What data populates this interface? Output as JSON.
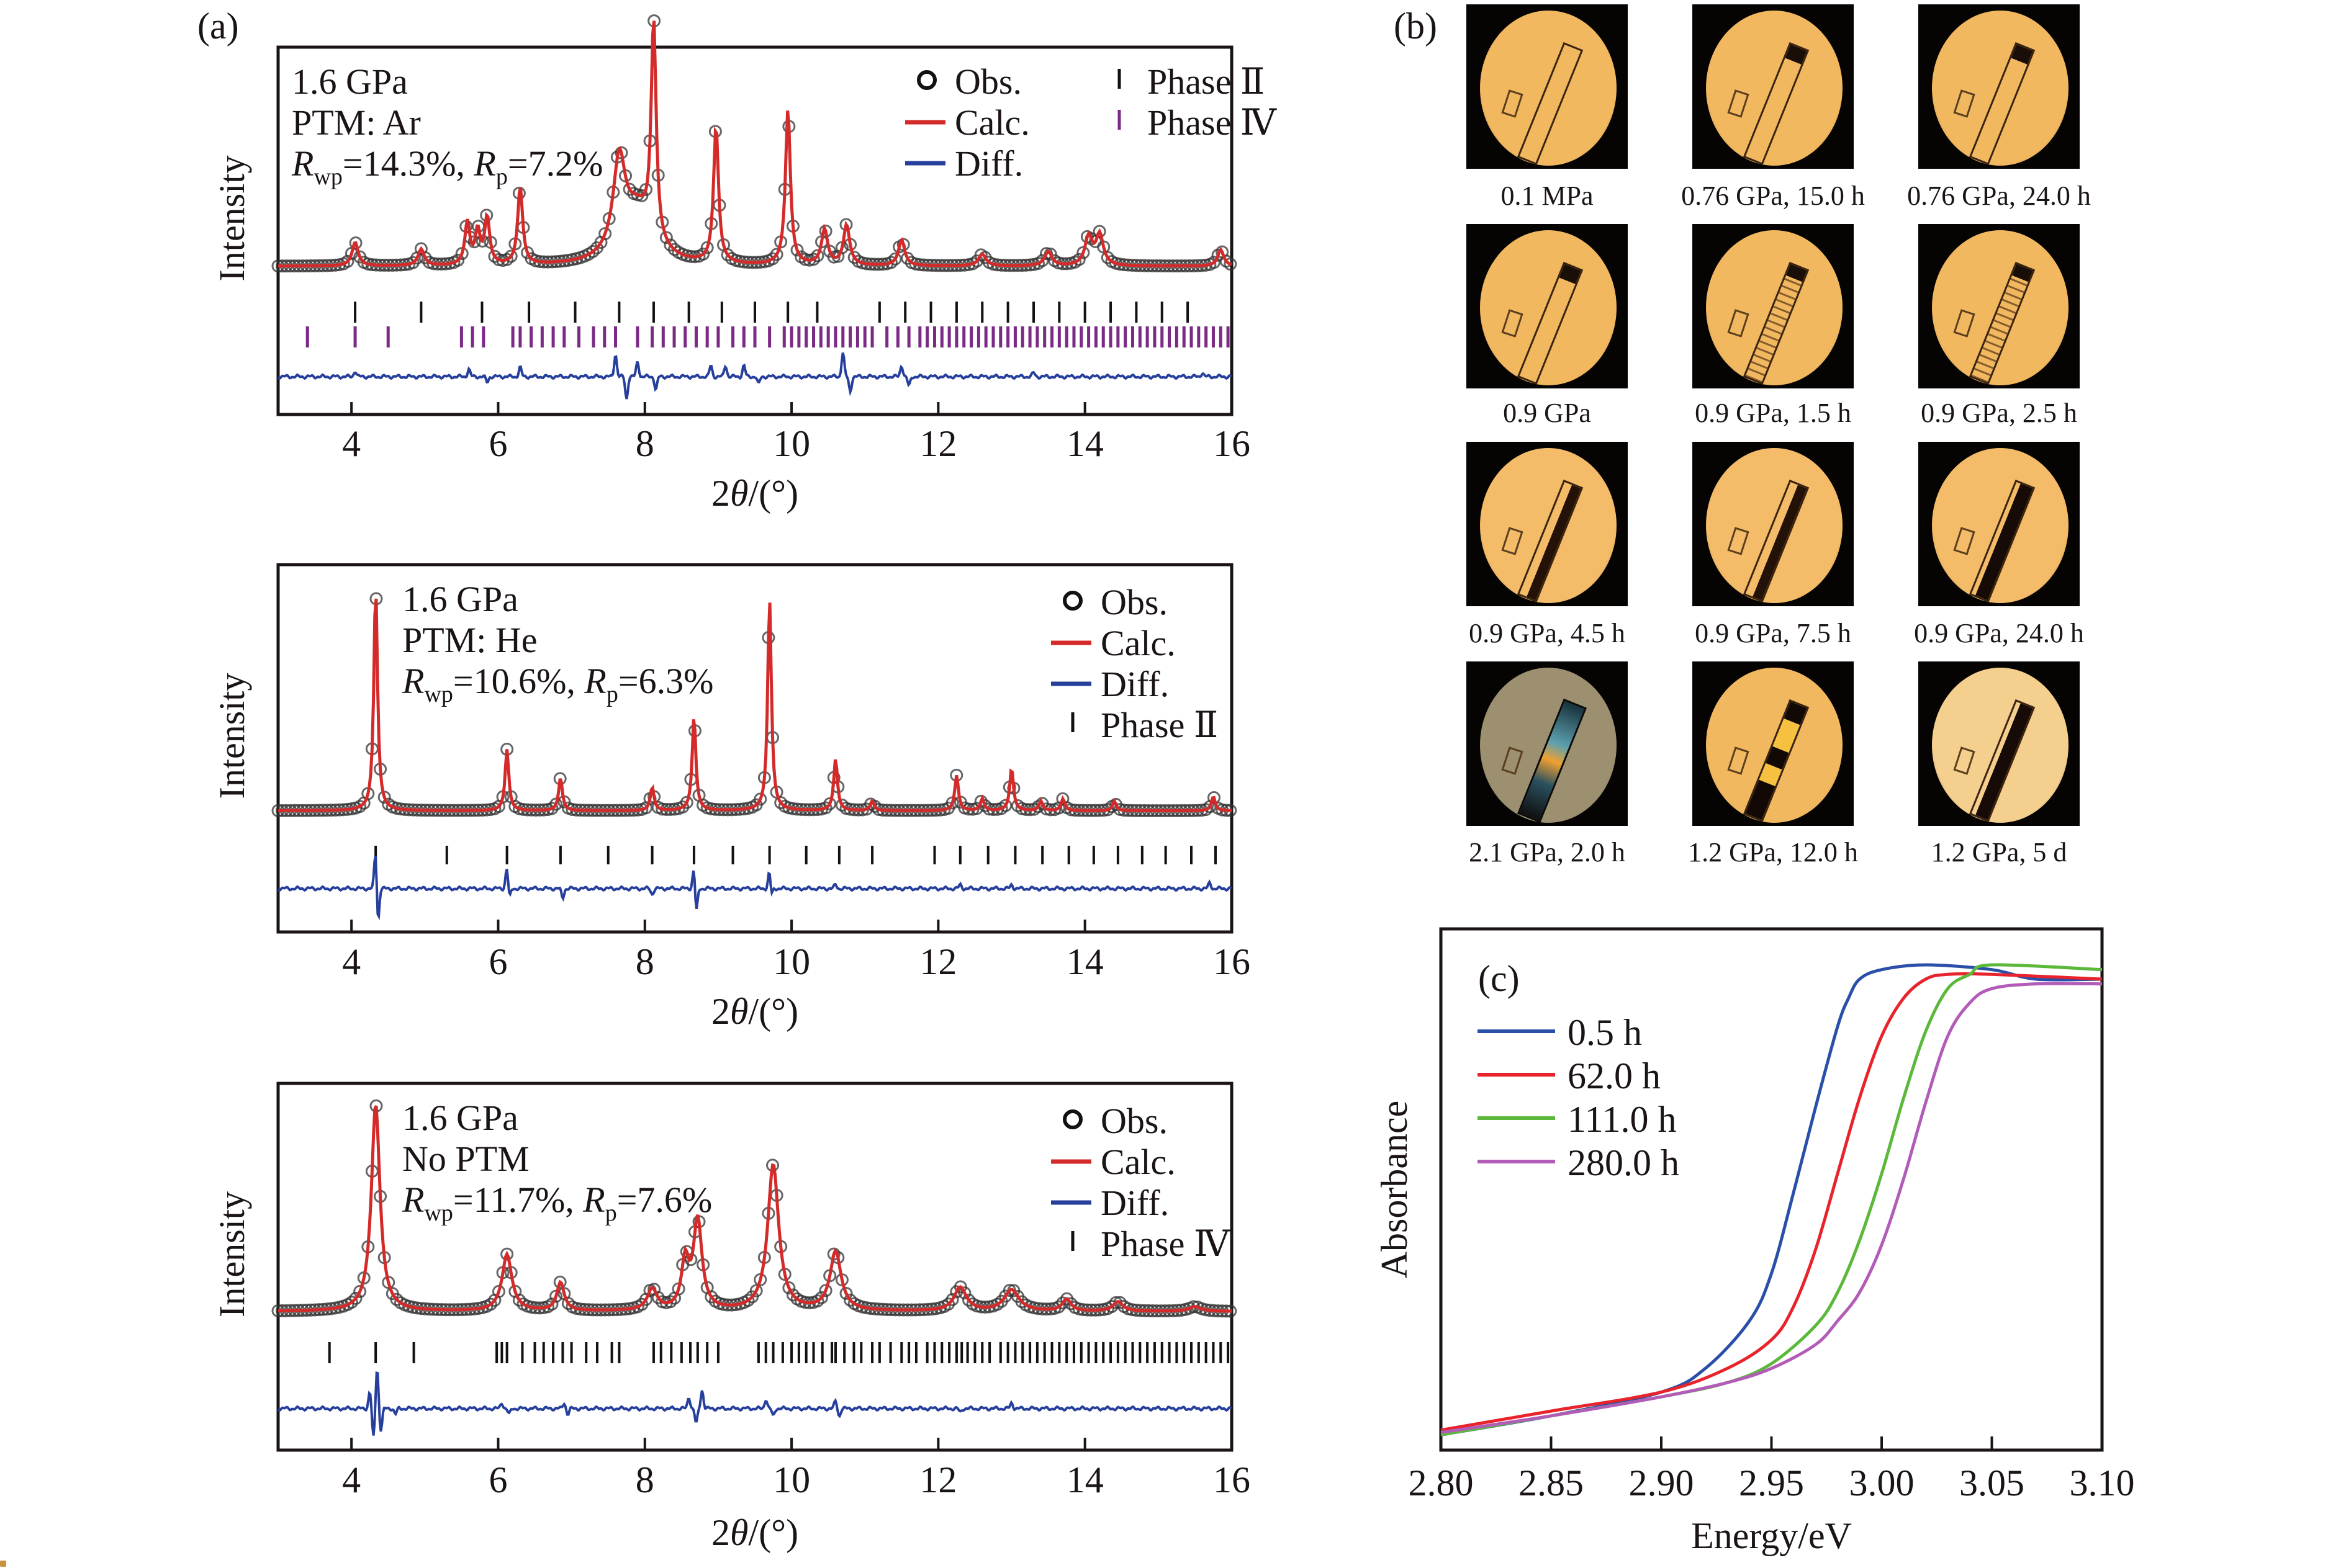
{
  "figure": {
    "panel_labels": {
      "a": "(a)",
      "b": "(b)",
      "c": "(c)"
    }
  },
  "colors": {
    "obs": "#333333",
    "calc": "#d42a2a",
    "diff": "#263f9c",
    "phase2": "#111111",
    "phase4": "#7b2a86",
    "c_0_5h": "#2a4fa8",
    "c_62h": "#e8232b",
    "c_111h": "#5cb83a",
    "c_280h": "#b25cb8"
  },
  "chart_data": [
    {
      "id": "a1",
      "type": "line",
      "title": "",
      "annotations": [
        "1.6 GPa",
        "PTM: Ar"
      ],
      "rwp": {
        "R": "R",
        "sub1": "wp",
        "v1": "=14.3%, ",
        "sub2": "p",
        "v2": "=7.2%"
      },
      "xlabel": "2θ/(°)",
      "ylabel": "Intensity",
      "xlim": [
        3,
        16
      ],
      "xticks": [
        4,
        6,
        8,
        10,
        12,
        14,
        16
      ],
      "legend": {
        "placement": "top-right",
        "entries": [
          {
            "key": "obs",
            "label": "Obs."
          },
          {
            "key": "calc",
            "label": "Calc."
          },
          {
            "key": "diff",
            "label": "Diff."
          },
          {
            "key": "phase2",
            "label": "Phase Ⅱ"
          },
          {
            "key": "phase4",
            "label": "Phase Ⅳ"
          }
        ]
      },
      "background": 0.06,
      "peaks": [
        {
          "x": 4.05,
          "h": 0.1,
          "w": 0.05
        },
        {
          "x": 4.95,
          "h": 0.07,
          "w": 0.05
        },
        {
          "x": 5.58,
          "h": 0.18,
          "w": 0.04
        },
        {
          "x": 5.72,
          "h": 0.14,
          "w": 0.04
        },
        {
          "x": 5.85,
          "h": 0.2,
          "w": 0.04
        },
        {
          "x": 6.3,
          "h": 0.33,
          "w": 0.04
        },
        {
          "x": 7.65,
          "h": 0.38,
          "w": 0.1
        },
        {
          "x": 7.9,
          "h": 0.22,
          "w": 0.25
        },
        {
          "x": 8.12,
          "h": 0.92,
          "w": 0.04
        },
        {
          "x": 8.97,
          "h": 0.58,
          "w": 0.04
        },
        {
          "x": 9.95,
          "h": 0.66,
          "w": 0.04
        },
        {
          "x": 10.45,
          "h": 0.15,
          "w": 0.05
        },
        {
          "x": 10.75,
          "h": 0.17,
          "w": 0.05
        },
        {
          "x": 11.5,
          "h": 0.11,
          "w": 0.05
        },
        {
          "x": 12.6,
          "h": 0.05,
          "w": 0.06
        },
        {
          "x": 13.5,
          "h": 0.06,
          "w": 0.06
        },
        {
          "x": 14.05,
          "h": 0.12,
          "w": 0.06
        },
        {
          "x": 14.2,
          "h": 0.13,
          "w": 0.06
        },
        {
          "x": 15.85,
          "h": 0.07,
          "w": 0.05
        }
      ],
      "phase2_ticks": [
        4.05,
        4.95,
        5.78,
        6.42,
        7.05,
        7.65,
        8.12,
        8.6,
        9.05,
        9.5,
        9.95,
        10.35,
        11.2,
        11.55,
        11.9,
        12.25,
        12.6,
        12.95,
        13.3,
        13.65,
        14.0,
        14.35,
        14.7,
        15.05,
        15.4
      ],
      "phase4_ticks": [
        3.4,
        4.05,
        4.5,
        5.5,
        5.65,
        5.8,
        6.2,
        6.3,
        6.45,
        6.6,
        6.75,
        6.9,
        7.1,
        7.3,
        7.45,
        7.6,
        7.9,
        8.1,
        8.25,
        8.4,
        8.55,
        8.7,
        8.85,
        9.0,
        9.2,
        9.35,
        9.5,
        9.7,
        9.9,
        10.0,
        10.1,
        10.2,
        10.3,
        10.4,
        10.5,
        10.6,
        10.7,
        10.8,
        10.9,
        11.0,
        11.1,
        11.3,
        11.45,
        11.6,
        11.75,
        11.85,
        11.95,
        12.05,
        12.15,
        12.25,
        12.35,
        12.45,
        12.55,
        12.65,
        12.75,
        12.85,
        12.95,
        13.05,
        13.15,
        13.25,
        13.35,
        13.45,
        13.55,
        13.65,
        13.75,
        13.85,
        13.95,
        14.05,
        14.15,
        14.25,
        14.35,
        14.45,
        14.55,
        14.65,
        14.75,
        14.85,
        14.95,
        15.05,
        15.15,
        15.25,
        15.35,
        15.45,
        15.55,
        15.65,
        15.75,
        15.85,
        15.95
      ],
      "diff_features": [
        {
          "x": 4.05,
          "a": 0.03
        },
        {
          "x": 5.6,
          "a": 0.04
        },
        {
          "x": 5.85,
          "a": -0.03
        },
        {
          "x": 6.3,
          "a": 0.05
        },
        {
          "x": 7.6,
          "a": 0.12
        },
        {
          "x": 7.75,
          "a": -0.12
        },
        {
          "x": 7.9,
          "a": 0.08
        },
        {
          "x": 8.15,
          "a": -0.07
        },
        {
          "x": 8.9,
          "a": 0.06
        },
        {
          "x": 9.1,
          "a": 0.06
        },
        {
          "x": 9.35,
          "a": 0.06
        },
        {
          "x": 9.55,
          "a": -0.04
        },
        {
          "x": 10.7,
          "a": 0.13
        },
        {
          "x": 10.8,
          "a": -0.08
        },
        {
          "x": 11.5,
          "a": 0.06
        },
        {
          "x": 11.6,
          "a": -0.05
        },
        {
          "x": 13.3,
          "a": 0.02
        },
        {
          "x": 15.6,
          "a": 0.02
        }
      ]
    },
    {
      "id": "a2",
      "type": "line",
      "title": "",
      "annotations": [
        "1.6 GPa",
        "PTM: He"
      ],
      "rwp": {
        "R": "R",
        "sub1": "wp",
        "v1": "=10.6%, ",
        "sub2": "p",
        "v2": "=6.3%"
      },
      "xlabel": "2θ/(°)",
      "ylabel": "Intensity",
      "xlim": [
        3,
        16
      ],
      "xticks": [
        4,
        6,
        8,
        10,
        12,
        14,
        16
      ],
      "legend": {
        "placement": "top-right",
        "entries": [
          {
            "key": "obs",
            "label": "Obs."
          },
          {
            "key": "calc",
            "label": "Calc."
          },
          {
            "key": "diff",
            "label": "Diff."
          },
          {
            "key": "phase2",
            "label": "Phase Ⅱ"
          }
        ]
      },
      "background": 0.03,
      "peaks": [
        {
          "x": 4.33,
          "h": 0.95,
          "w": 0.03
        },
        {
          "x": 6.12,
          "h": 0.26,
          "w": 0.03
        },
        {
          "x": 6.85,
          "h": 0.14,
          "w": 0.03
        },
        {
          "x": 8.1,
          "h": 0.1,
          "w": 0.03
        },
        {
          "x": 8.67,
          "h": 0.4,
          "w": 0.03
        },
        {
          "x": 9.7,
          "h": 0.9,
          "w": 0.03
        },
        {
          "x": 10.6,
          "h": 0.22,
          "w": 0.03
        },
        {
          "x": 11.1,
          "h": 0.04,
          "w": 0.03
        },
        {
          "x": 12.25,
          "h": 0.15,
          "w": 0.03
        },
        {
          "x": 12.6,
          "h": 0.05,
          "w": 0.03
        },
        {
          "x": 13.0,
          "h": 0.18,
          "w": 0.03
        },
        {
          "x": 13.4,
          "h": 0.04,
          "w": 0.03
        },
        {
          "x": 13.7,
          "h": 0.05,
          "w": 0.03
        },
        {
          "x": 14.4,
          "h": 0.04,
          "w": 0.03
        },
        {
          "x": 15.75,
          "h": 0.06,
          "w": 0.03
        }
      ],
      "phase2_ticks": [
        4.33,
        5.3,
        6.12,
        6.85,
        7.5,
        8.1,
        8.67,
        9.2,
        9.7,
        10.2,
        10.65,
        11.1,
        11.95,
        12.3,
        12.68,
        13.05,
        13.42,
        13.78,
        14.12,
        14.45,
        14.78,
        15.1,
        15.45,
        15.78
      ],
      "diff_features": [
        {
          "x": 4.33,
          "a": 0.22
        },
        {
          "x": 4.36,
          "a": -0.2
        },
        {
          "x": 6.12,
          "a": 0.12
        },
        {
          "x": 6.15,
          "a": -0.06
        },
        {
          "x": 6.88,
          "a": -0.05
        },
        {
          "x": 8.1,
          "a": -0.03
        },
        {
          "x": 8.67,
          "a": 0.12
        },
        {
          "x": 8.7,
          "a": -0.14
        },
        {
          "x": 9.7,
          "a": 0.11
        },
        {
          "x": 9.72,
          "a": -0.06
        },
        {
          "x": 10.6,
          "a": 0.02
        },
        {
          "x": 12.3,
          "a": 0.02
        },
        {
          "x": 13.0,
          "a": 0.02
        },
        {
          "x": 15.7,
          "a": 0.03
        }
      ]
    },
    {
      "id": "a3",
      "type": "line",
      "title": "",
      "annotations": [
        "1.6 GPa",
        "No PTM"
      ],
      "rwp": {
        "R": "R",
        "sub1": "wp",
        "v1": "=11.7%, ",
        "sub2": "p",
        "v2": "=7.6%"
      },
      "xlabel": "2θ/(°)",
      "ylabel": "Intensity",
      "xlim": [
        3,
        16
      ],
      "xticks": [
        4,
        6,
        8,
        10,
        12,
        14,
        16
      ],
      "legend": {
        "placement": "top-right",
        "entries": [
          {
            "key": "obs",
            "label": "Obs."
          },
          {
            "key": "calc",
            "label": "Calc."
          },
          {
            "key": "diff",
            "label": "Diff."
          },
          {
            "key": "phase2",
            "label": "Phase Ⅳ"
          }
        ]
      },
      "background": 0.03,
      "peaks": [
        {
          "x": 4.33,
          "h": 0.88,
          "w": 0.07
        },
        {
          "x": 6.12,
          "h": 0.24,
          "w": 0.08
        },
        {
          "x": 6.85,
          "h": 0.12,
          "w": 0.06
        },
        {
          "x": 8.1,
          "h": 0.09,
          "w": 0.08
        },
        {
          "x": 8.55,
          "h": 0.2,
          "w": 0.06
        },
        {
          "x": 8.72,
          "h": 0.38,
          "w": 0.07
        },
        {
          "x": 9.75,
          "h": 0.62,
          "w": 0.09
        },
        {
          "x": 10.6,
          "h": 0.25,
          "w": 0.09
        },
        {
          "x": 12.3,
          "h": 0.1,
          "w": 0.1
        },
        {
          "x": 13.0,
          "h": 0.09,
          "w": 0.12
        },
        {
          "x": 13.75,
          "h": 0.05,
          "w": 0.07
        },
        {
          "x": 14.45,
          "h": 0.04,
          "w": 0.08
        },
        {
          "x": 15.5,
          "h": 0.02,
          "w": 0.1
        }
      ],
      "phase2_ticks": [
        3.7,
        4.33,
        4.85,
        5.98,
        6.05,
        6.12,
        6.33,
        6.5,
        6.62,
        6.75,
        6.88,
        7.0,
        7.2,
        7.35,
        7.55,
        7.65,
        8.12,
        8.22,
        8.36,
        8.5,
        8.62,
        8.72,
        8.85,
        9.0,
        9.55,
        9.65,
        9.75,
        9.88,
        10.0,
        10.1,
        10.2,
        10.3,
        10.42,
        10.55,
        10.6,
        10.72,
        10.85,
        10.95,
        11.1,
        11.2,
        11.35,
        11.5,
        11.6,
        11.7,
        11.85,
        11.95,
        12.05,
        12.15,
        12.25,
        12.32,
        12.4,
        12.5,
        12.6,
        12.7,
        12.85,
        12.95,
        13.05,
        13.15,
        13.25,
        13.35,
        13.45,
        13.55,
        13.65,
        13.75,
        13.85,
        13.95,
        14.05,
        14.15,
        14.25,
        14.35,
        14.45,
        14.55,
        14.65,
        14.75,
        14.85,
        14.95,
        15.05,
        15.15,
        15.25,
        15.35,
        15.45,
        15.55,
        15.65,
        15.75,
        15.85,
        15.95
      ],
      "diff_features": [
        {
          "x": 4.25,
          "a": 0.09
        },
        {
          "x": 4.3,
          "a": -0.16
        },
        {
          "x": 4.35,
          "a": 0.22
        },
        {
          "x": 4.4,
          "a": -0.12
        },
        {
          "x": 4.6,
          "a": -0.03
        },
        {
          "x": 6.05,
          "a": 0.03
        },
        {
          "x": 6.15,
          "a": -0.03
        },
        {
          "x": 6.9,
          "a": 0.03
        },
        {
          "x": 6.95,
          "a": -0.03
        },
        {
          "x": 8.6,
          "a": 0.06
        },
        {
          "x": 8.7,
          "a": -0.08
        },
        {
          "x": 8.78,
          "a": 0.1
        },
        {
          "x": 9.65,
          "a": 0.05
        },
        {
          "x": 9.75,
          "a": -0.04
        },
        {
          "x": 10.6,
          "a": 0.04
        },
        {
          "x": 10.65,
          "a": -0.04
        },
        {
          "x": 12.3,
          "a": -0.02
        },
        {
          "x": 13.0,
          "a": 0.03
        }
      ]
    },
    {
      "id": "c",
      "type": "line",
      "title": "",
      "panel_label": "(c)",
      "xlabel": "Energy/eV",
      "ylabel": "Absorbance",
      "xlim": [
        2.8,
        3.1
      ],
      "ylim": [
        0,
        1
      ],
      "xticks": [
        "2.80",
        "2.85",
        "2.90",
        "2.95",
        "3.00",
        "3.05",
        "3.10"
      ],
      "legend": {
        "placement": "top-left"
      },
      "series": [
        {
          "name": "0.5 h",
          "colorKey": "c_0_5h",
          "x": [
            2.8,
            2.85,
            2.9,
            2.92,
            2.94,
            2.95,
            2.96,
            2.97,
            2.98,
            2.985,
            2.99,
            3.0,
            3.02,
            3.05,
            3.07,
            3.1
          ],
          "y": [
            0.01,
            0.05,
            0.1,
            0.15,
            0.25,
            0.35,
            0.52,
            0.7,
            0.87,
            0.93,
            0.97,
            0.99,
            1.0,
            0.99,
            0.97,
            0.97
          ]
        },
        {
          "name": "62.0 h",
          "colorKey": "c_62h",
          "x": [
            2.8,
            2.85,
            2.9,
            2.93,
            2.95,
            2.96,
            2.97,
            2.98,
            2.99,
            3.0,
            3.01,
            3.02,
            3.03,
            3.05,
            3.1
          ],
          "y": [
            0.02,
            0.06,
            0.1,
            0.15,
            0.21,
            0.28,
            0.4,
            0.56,
            0.72,
            0.85,
            0.93,
            0.97,
            0.98,
            0.98,
            0.97
          ]
        },
        {
          "name": "111.0 h",
          "colorKey": "c_111h",
          "x": [
            2.8,
            2.85,
            2.9,
            2.93,
            2.95,
            2.97,
            2.98,
            2.99,
            3.0,
            3.01,
            3.02,
            3.03,
            3.04,
            3.05,
            3.1
          ],
          "y": [
            0.01,
            0.05,
            0.09,
            0.12,
            0.16,
            0.24,
            0.31,
            0.42,
            0.56,
            0.72,
            0.86,
            0.95,
            0.98,
            1.0,
            0.99
          ]
        },
        {
          "name": "280.0 h",
          "colorKey": "c_280h",
          "x": [
            2.8,
            2.85,
            2.9,
            2.93,
            2.95,
            2.97,
            2.98,
            2.99,
            3.0,
            3.01,
            3.02,
            3.03,
            3.04,
            3.05,
            3.07,
            3.1
          ],
          "y": [
            0.015,
            0.05,
            0.09,
            0.12,
            0.15,
            0.2,
            0.25,
            0.31,
            0.41,
            0.55,
            0.71,
            0.85,
            0.92,
            0.95,
            0.96,
            0.96
          ]
        }
      ]
    }
  ],
  "micrographs": [
    {
      "label": "0.1 MPa",
      "stage": "clear",
      "disc": "#f2b860"
    },
    {
      "label": "0.76 GPa, 15.0 h",
      "stage": "tip",
      "disc": "#f2b860"
    },
    {
      "label": "0.76 GPa, 24.0 h",
      "stage": "tip",
      "disc": "#f2b860"
    },
    {
      "label": "0.9 GPa",
      "stage": "tip",
      "disc": "#f2b860"
    },
    {
      "label": "0.9 GPa, 1.5 h",
      "stage": "speckle",
      "disc": "#f2b860"
    },
    {
      "label": "0.9 GPa, 2.5 h",
      "stage": "speckle",
      "disc": "#f2b860"
    },
    {
      "label": "0.9 GPa, 4.5 h",
      "stage": "partial",
      "disc": "#f4bb68"
    },
    {
      "label": "0.9 GPa, 7.5 h",
      "stage": "partial",
      "disc": "#f4bb68"
    },
    {
      "label": "0.9 GPa, 24.0 h",
      "stage": "dark",
      "disc": "#f4bb68"
    },
    {
      "label": "2.1 GPa, 2.0 h",
      "stage": "polar",
      "disc": "#9c9070"
    },
    {
      "label": "1.2 GPa, 12.0 h",
      "stage": "mixed",
      "disc": "#f2b860"
    },
    {
      "label": "1.2 GPa, 5 d",
      "stage": "dark",
      "disc": "#f5cf8e"
    }
  ]
}
